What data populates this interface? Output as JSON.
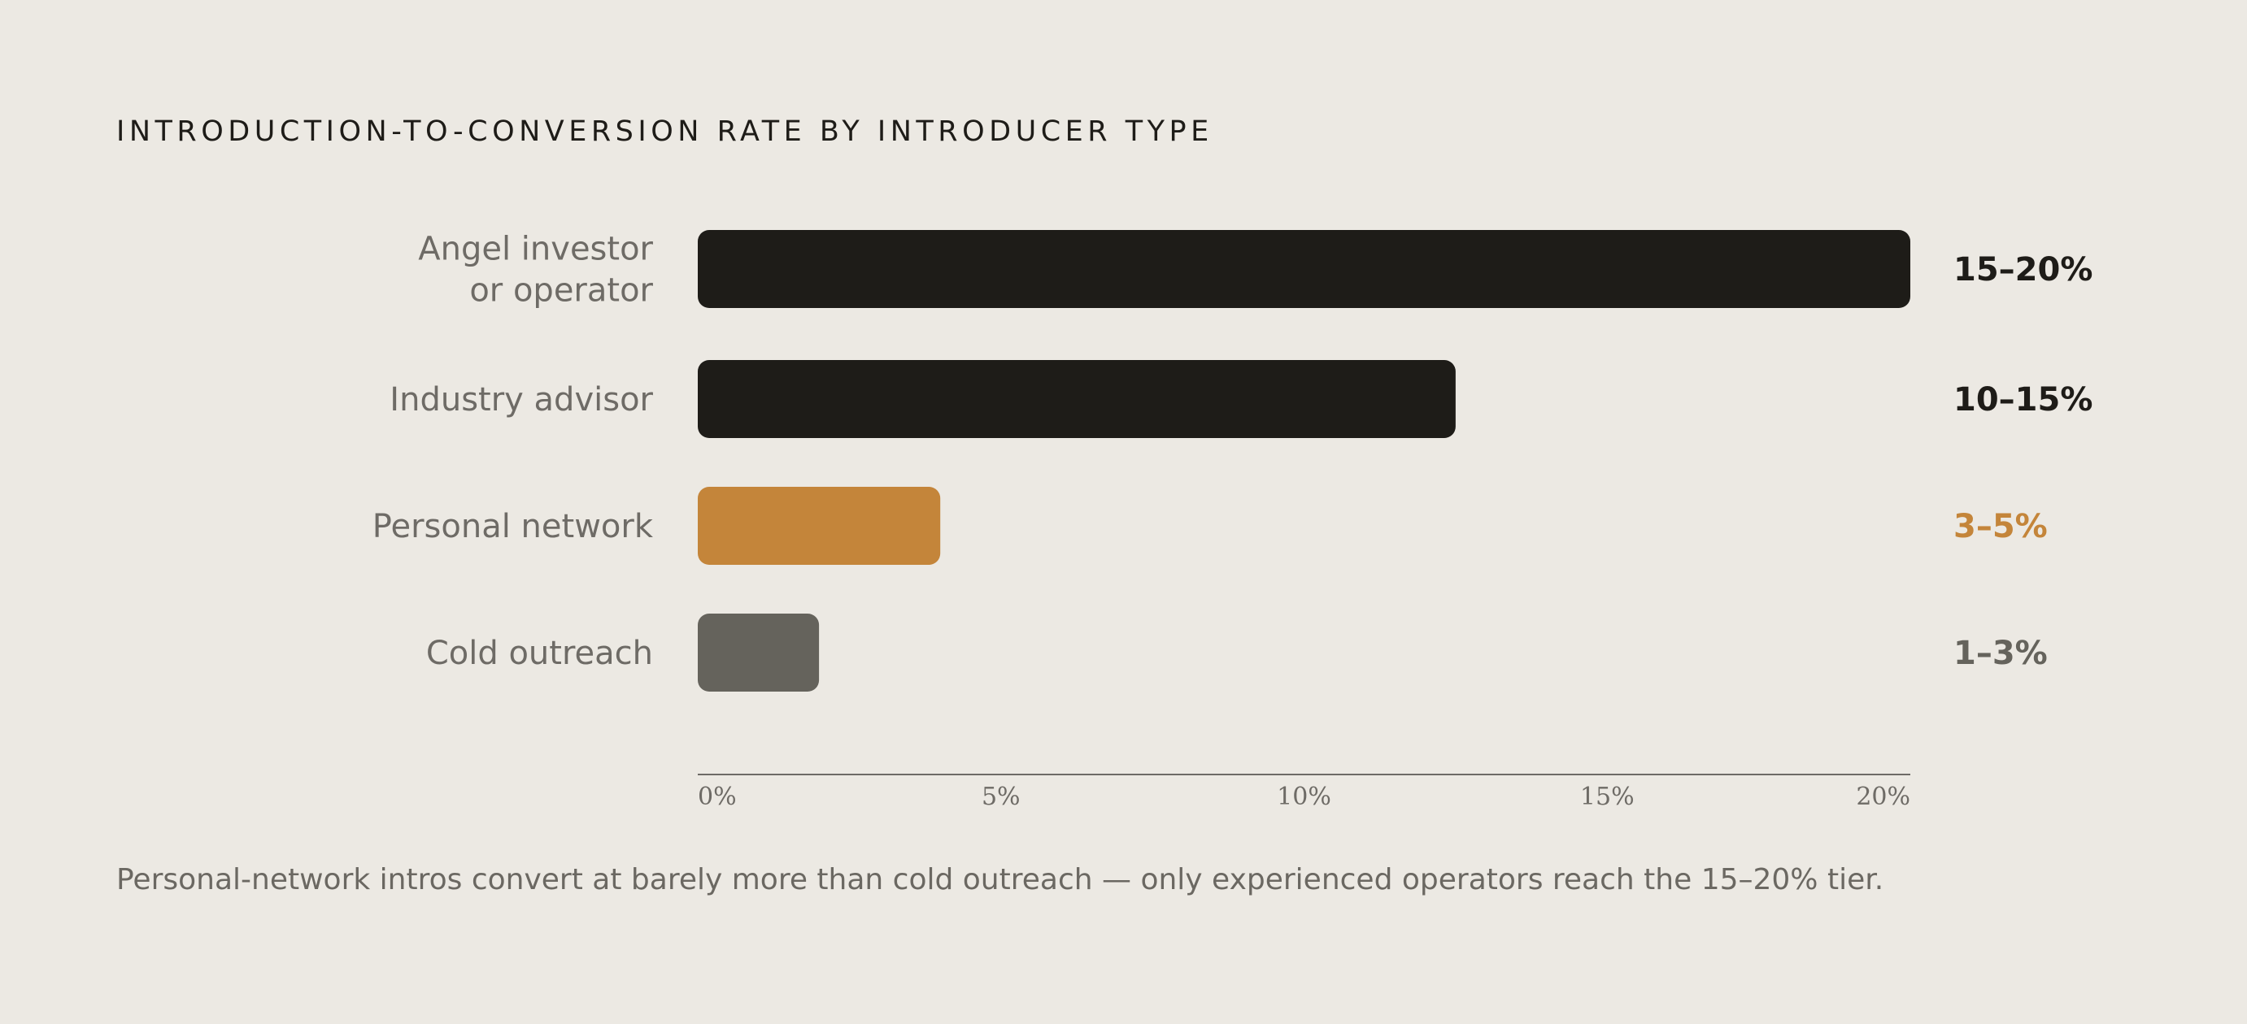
{
  "chart_data": {
    "type": "bar",
    "orientation": "horizontal",
    "title": "INTRODUCTION-TO-CONVERSION RATE BY INTRODUCER TYPE",
    "categories": [
      [
        "Angel investor",
        "or operator"
      ],
      [
        "Industry advisor"
      ],
      [
        "Personal network"
      ],
      [
        "Cold outreach"
      ]
    ],
    "values": [
      20,
      12.5,
      4,
      2
    ],
    "value_labels": [
      "15–20%",
      "10–15%",
      "3–5%",
      "1–3%"
    ],
    "colors": [
      "#1E1C18",
      "#1E1C18",
      "#C4853A",
      "#65635C"
    ],
    "label_colors": [
      "#1E1C18",
      "#1E1C18",
      "#C4853A",
      "#65635C"
    ],
    "xlim": [
      0,
      20
    ],
    "ticks": [
      0,
      5,
      10,
      15,
      20
    ],
    "tick_labels": [
      "0%",
      "5%",
      "10%",
      "15%",
      "20%"
    ],
    "xlabel": "",
    "ylabel": "",
    "grid": false
  },
  "caption": "Personal-network intros convert at barely more than cold outreach — only experienced operators reach the 15–20% tier."
}
